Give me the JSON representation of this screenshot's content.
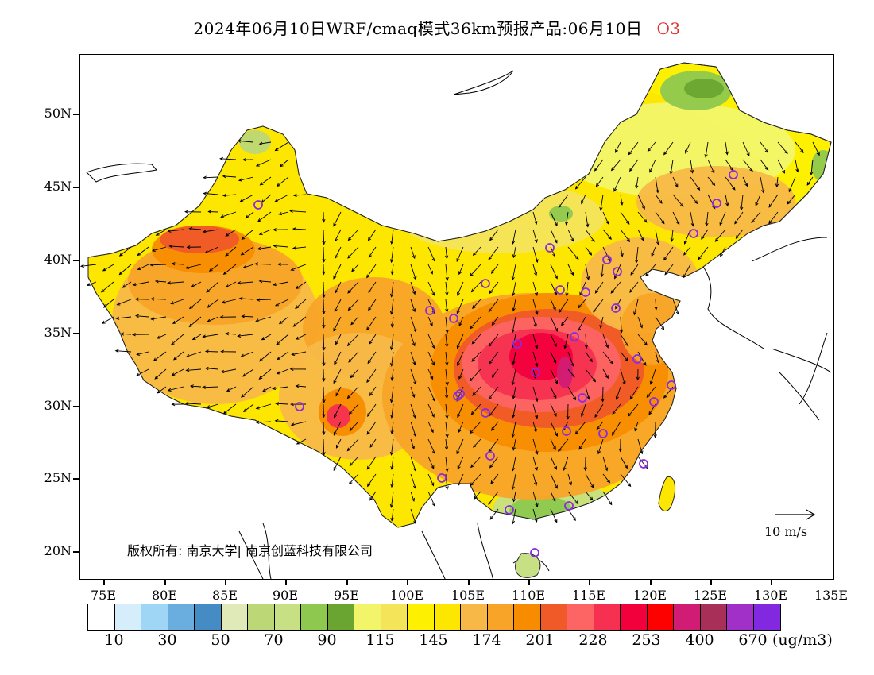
{
  "title": {
    "text": "2024年06月10日WRF/cmaq模式36km预报产品:06月10日",
    "species": "O3",
    "species_color": "#e03030"
  },
  "map": {
    "lat_labels": [
      "50N",
      "45N",
      "40N",
      "35N",
      "30N",
      "25N",
      "20N"
    ],
    "lon_labels": [
      "75E",
      "80E",
      "85E",
      "90E",
      "95E",
      "100E",
      "105E",
      "110E",
      "115E",
      "120E",
      "125E",
      "130E",
      "135E"
    ],
    "copyright": "版权所有: 南京大学| 南京创蓝科技有限公司",
    "ref_vector_label": "10 m/s"
  },
  "colorbar": {
    "colors": [
      "#ffffff",
      "#d6eefc",
      "#9fd6f5",
      "#6aaee0",
      "#468cc4",
      "#dfeab8",
      "#bcd876",
      "#c6e083",
      "#8ec84e",
      "#6aa532",
      "#f2f56a",
      "#f4e45a",
      "#fdf000",
      "#fde600",
      "#f8b848",
      "#f8a428",
      "#f88c00",
      "#f05a28",
      "#fd6464",
      "#f53050",
      "#f2003c",
      "#fd0000",
      "#d01c74",
      "#a83058",
      "#a030c8",
      "#8228e0"
    ],
    "labels": [
      "10",
      "30",
      "50",
      "70",
      "90",
      "115",
      "145",
      "174",
      "201",
      "228",
      "253",
      "400",
      "670"
    ],
    "unit": "(ug/m3)"
  }
}
